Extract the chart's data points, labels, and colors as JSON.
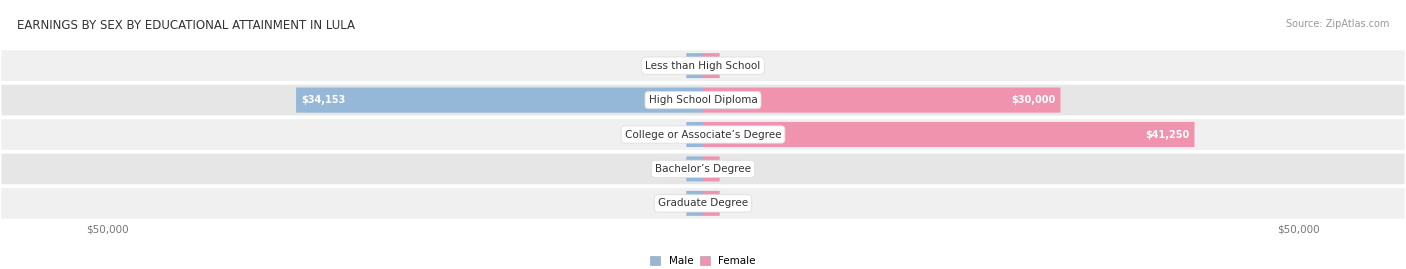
{
  "title": "EARNINGS BY SEX BY EDUCATIONAL ATTAINMENT IN LULA",
  "source": "Source: ZipAtlas.com",
  "categories": [
    "Less than High School",
    "High School Diploma",
    "College or Associate’s Degree",
    "Bachelor’s Degree",
    "Graduate Degree"
  ],
  "male_values": [
    0,
    34153,
    0,
    0,
    0
  ],
  "female_values": [
    0,
    30000,
    41250,
    0,
    0
  ],
  "max_val": 50000,
  "male_color": "#96b8d8",
  "female_color": "#f093ae",
  "male_label": "Male",
  "female_label": "Female",
  "row_bg_light": "#f0f0f0",
  "row_bg_dark": "#e6e6e6",
  "row_border": "#ffffff",
  "title_fontsize": 8.5,
  "source_fontsize": 7,
  "axis_label_fontsize": 7.5,
  "bar_label_fontsize": 7,
  "cat_label_fontsize": 7,
  "bg_color": "#ffffff"
}
